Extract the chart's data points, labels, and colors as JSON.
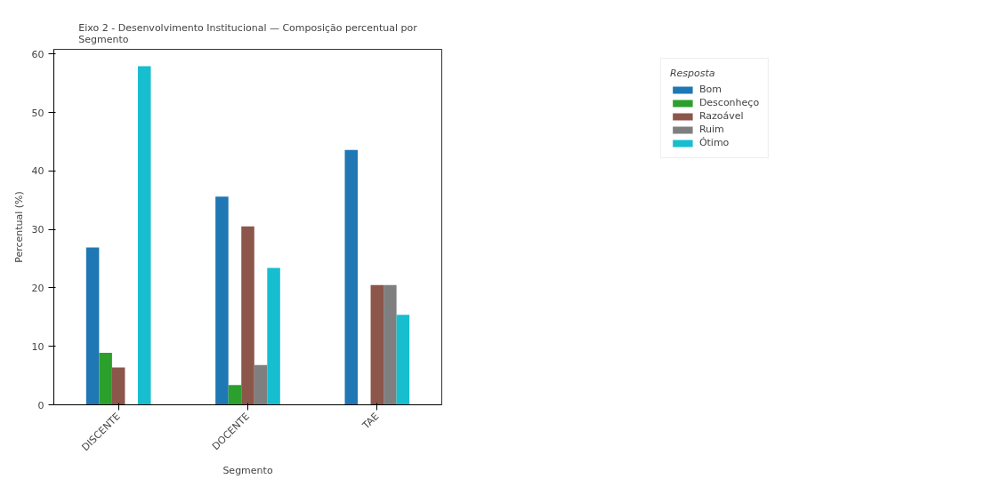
{
  "chart_data": {
    "type": "bar",
    "title": "Eixo 2 - Desenvolvimento Institucional — Composição percentual por\nSegmento",
    "xlabel": "Segmento",
    "ylabel": "Percentual (%)",
    "legend_title": "Resposta",
    "categories": [
      "DISCENTE",
      "DOCENTE",
      "TAE"
    ],
    "series": [
      {
        "name": "Bom",
        "color": "#1f77b4",
        "values": [
          26.9,
          35.6,
          43.6
        ]
      },
      {
        "name": "Desconheço",
        "color": "#2ca02c",
        "values": [
          8.9,
          3.4,
          null
        ]
      },
      {
        "name": "Razoável",
        "color": "#8c564b",
        "values": [
          6.4,
          30.5,
          20.5
        ]
      },
      {
        "name": "Ruim",
        "color": "#7f7f7f",
        "values": [
          null,
          6.8,
          20.5
        ]
      },
      {
        "name": "Ótimo",
        "color": "#17becf",
        "values": [
          57.9,
          23.4,
          15.4
        ]
      }
    ],
    "ylim": [
      0,
      60.8
    ],
    "yticks": [
      0,
      10,
      20,
      30,
      40,
      50,
      60
    ],
    "grid": false,
    "legend": "top right"
  }
}
